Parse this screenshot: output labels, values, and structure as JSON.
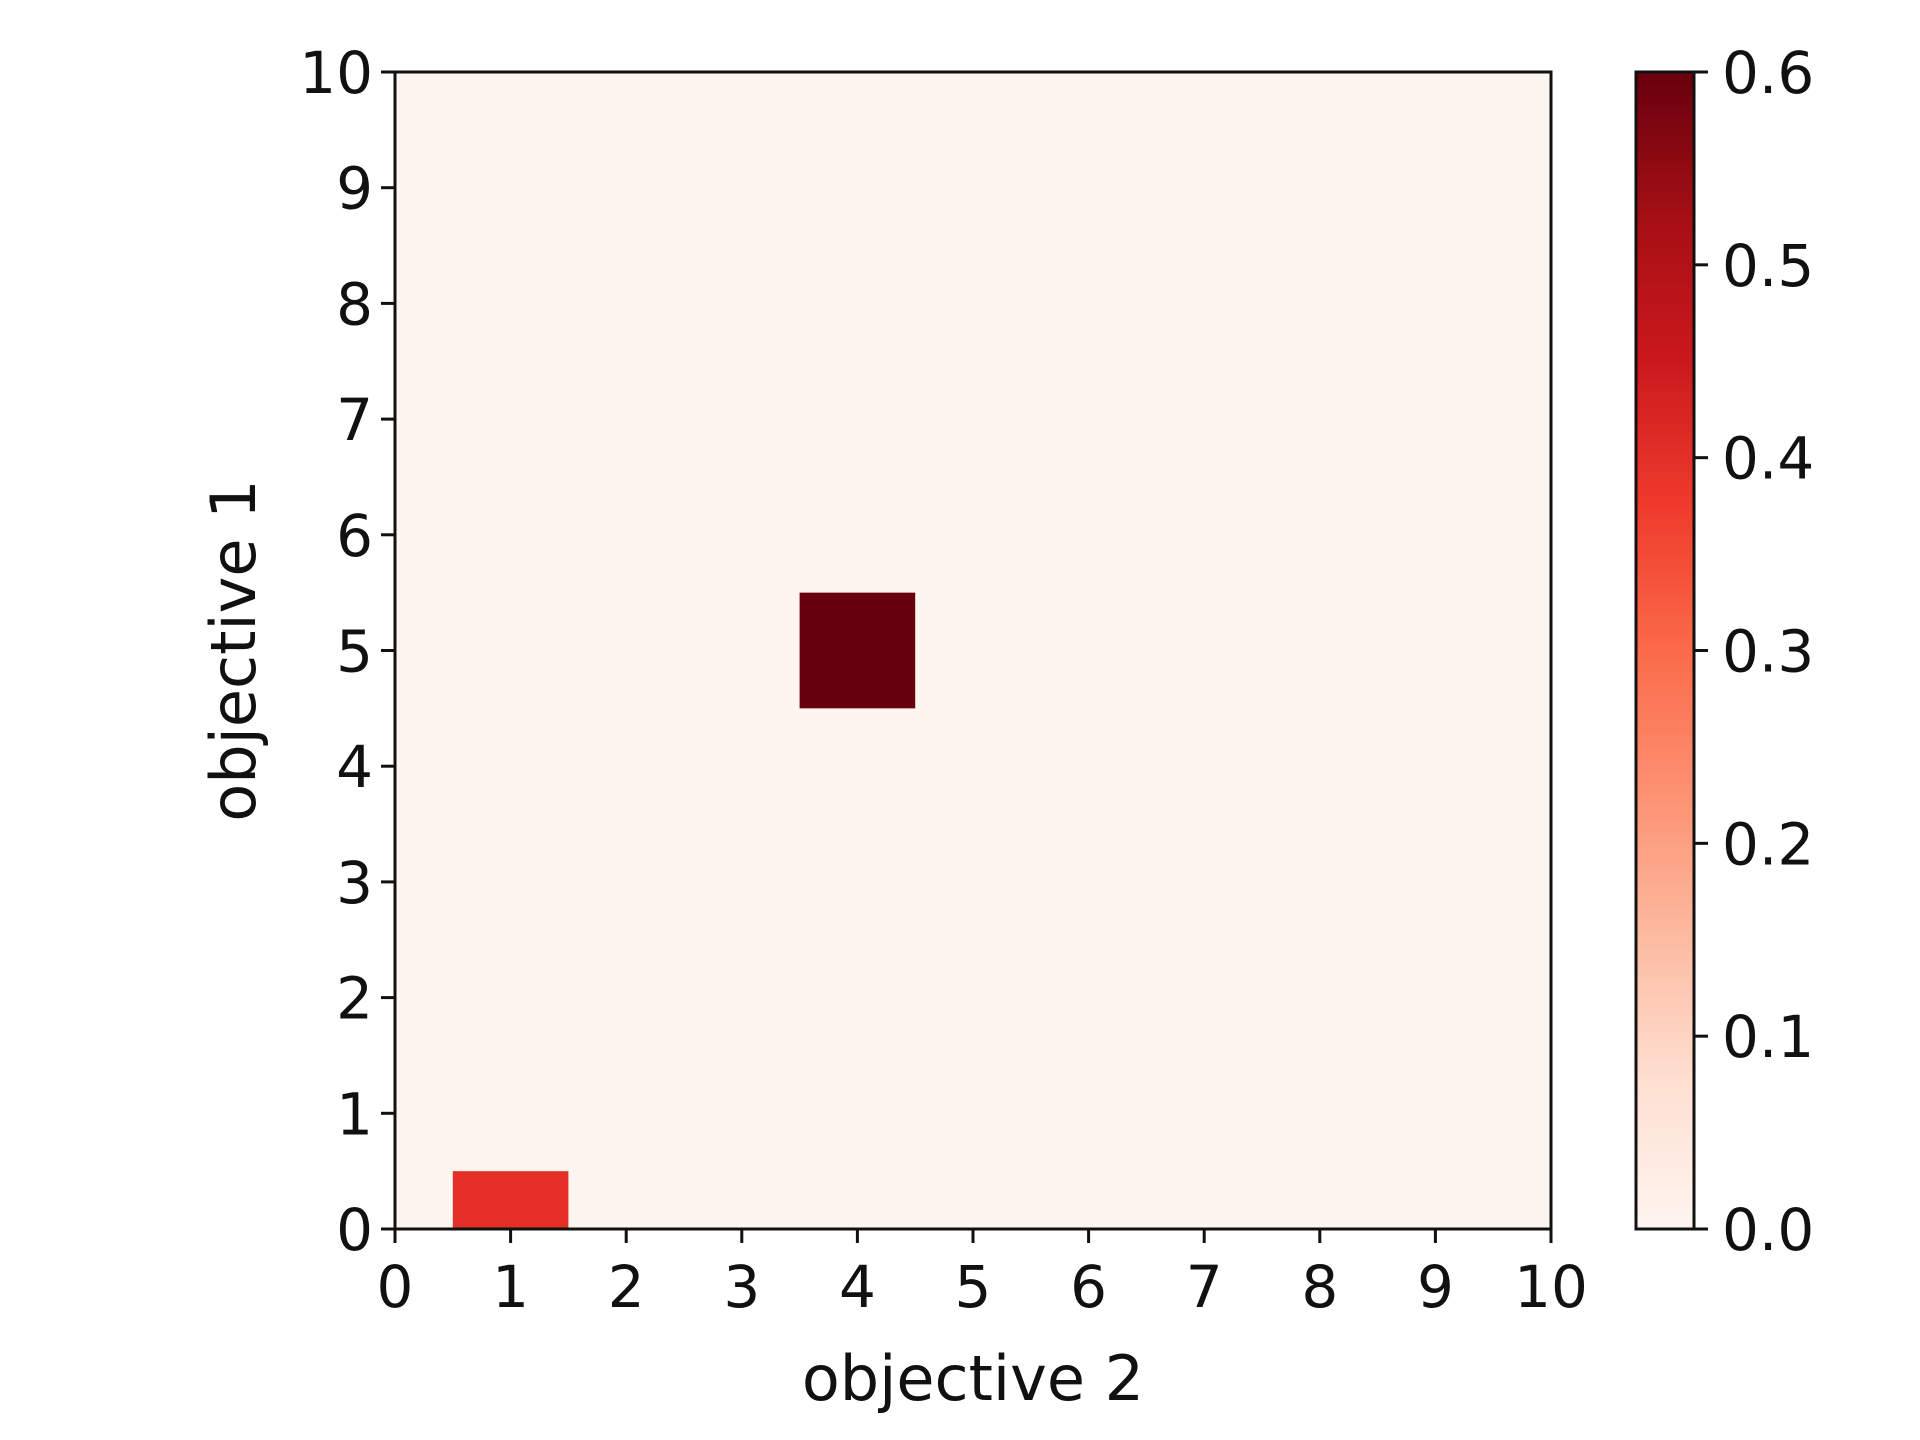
{
  "chart_data": {
    "type": "heatmap",
    "title": "",
    "xlabel": "objective 2",
    "ylabel": "objective 1",
    "xlim": [
      0,
      10
    ],
    "ylim": [
      0,
      10
    ],
    "x_ticks": [
      "0",
      "1",
      "2",
      "3",
      "4",
      "5",
      "6",
      "7",
      "8",
      "9",
      "10"
    ],
    "y_ticks": [
      "0",
      "1",
      "2",
      "3",
      "4",
      "5",
      "6",
      "7",
      "8",
      "9",
      "10"
    ],
    "cell_size": 1,
    "background_value": 0.0,
    "cells": [
      {
        "x": 1,
        "y": 0,
        "value": 0.4
      },
      {
        "x": 4,
        "y": 5,
        "value": 0.6
      }
    ],
    "colorbar": {
      "min": 0.0,
      "max": 0.6,
      "ticks": [
        "0.0",
        "0.1",
        "0.2",
        "0.3",
        "0.4",
        "0.5",
        "0.6"
      ],
      "colormap": [
        "#fff5f0",
        "#fee0d2",
        "#fcbba1",
        "#fc9272",
        "#fb6a4a",
        "#ef3b2c",
        "#cb181d",
        "#a50f15",
        "#67000d"
      ]
    },
    "grid": false
  }
}
